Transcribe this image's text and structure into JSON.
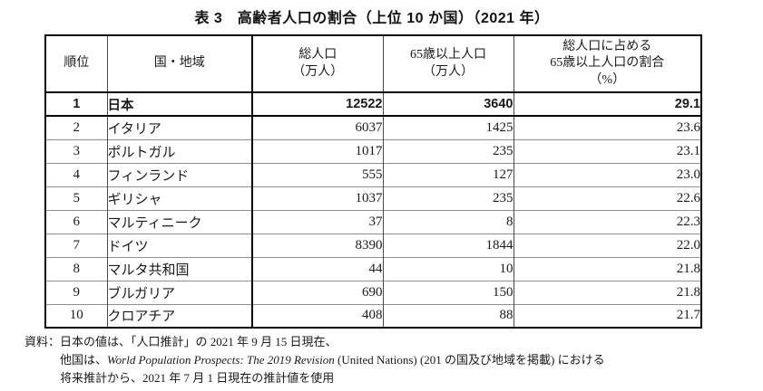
{
  "title": "表 3　高齢者人口の割合（上位 10 か国）（2021 年）",
  "table": {
    "headers": {
      "rank": "順位",
      "country": "国・地域",
      "total_l1": "総人口",
      "total_l2": "（万人）",
      "elderly_l1": "65歳以上人口",
      "elderly_l2": "（万人）",
      "ratio_l1": "総人口に占める",
      "ratio_l2": "65歳以上人口の割合",
      "ratio_l3": "（%）"
    },
    "rows": [
      {
        "rank": "1",
        "country": "日本",
        "total": "12522",
        "elderly": "3640",
        "ratio": "29.1",
        "highlight": true
      },
      {
        "rank": "2",
        "country": "イタリア",
        "total": "6037",
        "elderly": "1425",
        "ratio": "23.6",
        "highlight": false
      },
      {
        "rank": "3",
        "country": "ポルトガル",
        "total": "1017",
        "elderly": "235",
        "ratio": "23.1",
        "highlight": false
      },
      {
        "rank": "4",
        "country": "フィンランド",
        "total": "555",
        "elderly": "127",
        "ratio": "23.0",
        "highlight": false
      },
      {
        "rank": "5",
        "country": "ギリシャ",
        "total": "1037",
        "elderly": "235",
        "ratio": "22.6",
        "highlight": false
      },
      {
        "rank": "6",
        "country": "マルティニーク",
        "total": "37",
        "elderly": "8",
        "ratio": "22.3",
        "highlight": false
      },
      {
        "rank": "7",
        "country": "ドイツ",
        "total": "8390",
        "elderly": "1844",
        "ratio": "22.0",
        "highlight": false
      },
      {
        "rank": "8",
        "country": "マルタ共和国",
        "total": "44",
        "elderly": "10",
        "ratio": "21.8",
        "highlight": false
      },
      {
        "rank": "9",
        "country": "ブルガリア",
        "total": "690",
        "elderly": "150",
        "ratio": "21.8",
        "highlight": false
      },
      {
        "rank": "10",
        "country": "クロアチア",
        "total": "408",
        "elderly": "88",
        "ratio": "21.7",
        "highlight": false
      }
    ]
  },
  "footnote": {
    "label": "資料：",
    "line1": "日本の値は、「人口推計」の 2021 年 9 月 15 日現在、",
    "line2_pre": "他国は、",
    "line2_italic": "World Population Prospects: The 2019 Revision",
    "line2_post": " (United Nations) (201 の国及び地域を掲載) における",
    "line3": "将来推計から、2021 年 7 月 1 日現在の推計値を使用"
  },
  "chart_data": {
    "type": "table",
    "title": "表 3　高齢者人口の割合（上位 10 か国）（2021 年）",
    "columns": [
      "順位",
      "国・地域",
      "総人口（万人）",
      "65歳以上人口（万人）",
      "総人口に占める65歳以上人口の割合（%）"
    ],
    "rows": [
      [
        1,
        "日本",
        12522,
        3640,
        29.1
      ],
      [
        2,
        "イタリア",
        6037,
        1425,
        23.6
      ],
      [
        3,
        "ポルトガル",
        1017,
        235,
        23.1
      ],
      [
        4,
        "フィンランド",
        555,
        127,
        23.0
      ],
      [
        5,
        "ギリシャ",
        1037,
        235,
        22.6
      ],
      [
        6,
        "マルティニーク",
        37,
        8,
        22.3
      ],
      [
        7,
        "ドイツ",
        8390,
        1844,
        22.0
      ],
      [
        8,
        "マルタ共和国",
        44,
        10,
        21.8
      ],
      [
        9,
        "ブルガリア",
        690,
        150,
        21.8
      ],
      [
        10,
        "クロアチア",
        408,
        88,
        21.7
      ]
    ]
  }
}
